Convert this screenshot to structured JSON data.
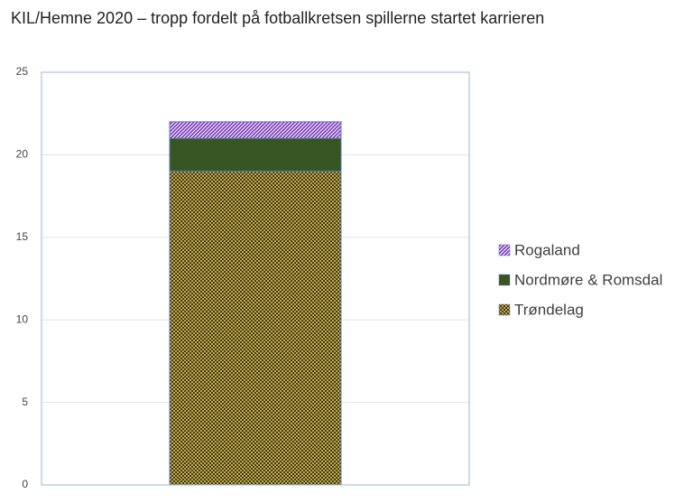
{
  "chart_data": {
    "type": "stacked_bar",
    "title": "KIL/Hemne 2020 – tropp fordelt på fotballkretsen spillerne startet karrieren",
    "categories": [
      null
    ],
    "series": [
      {
        "name": "Trøndelag",
        "color": "#c9a936",
        "pattern": "checker",
        "values": [
          19
        ]
      },
      {
        "name": "Nordmøre & Romsdal",
        "color": "#375623",
        "pattern": "solid",
        "values": [
          2
        ]
      },
      {
        "name": "Rogaland",
        "color": "#7f3fbf",
        "pattern": "hatch",
        "values": [
          1
        ]
      }
    ],
    "ylim": [
      0,
      25
    ],
    "yticks": [
      0,
      5,
      10,
      15,
      20,
      25
    ],
    "grid": true,
    "legend": "right"
  }
}
